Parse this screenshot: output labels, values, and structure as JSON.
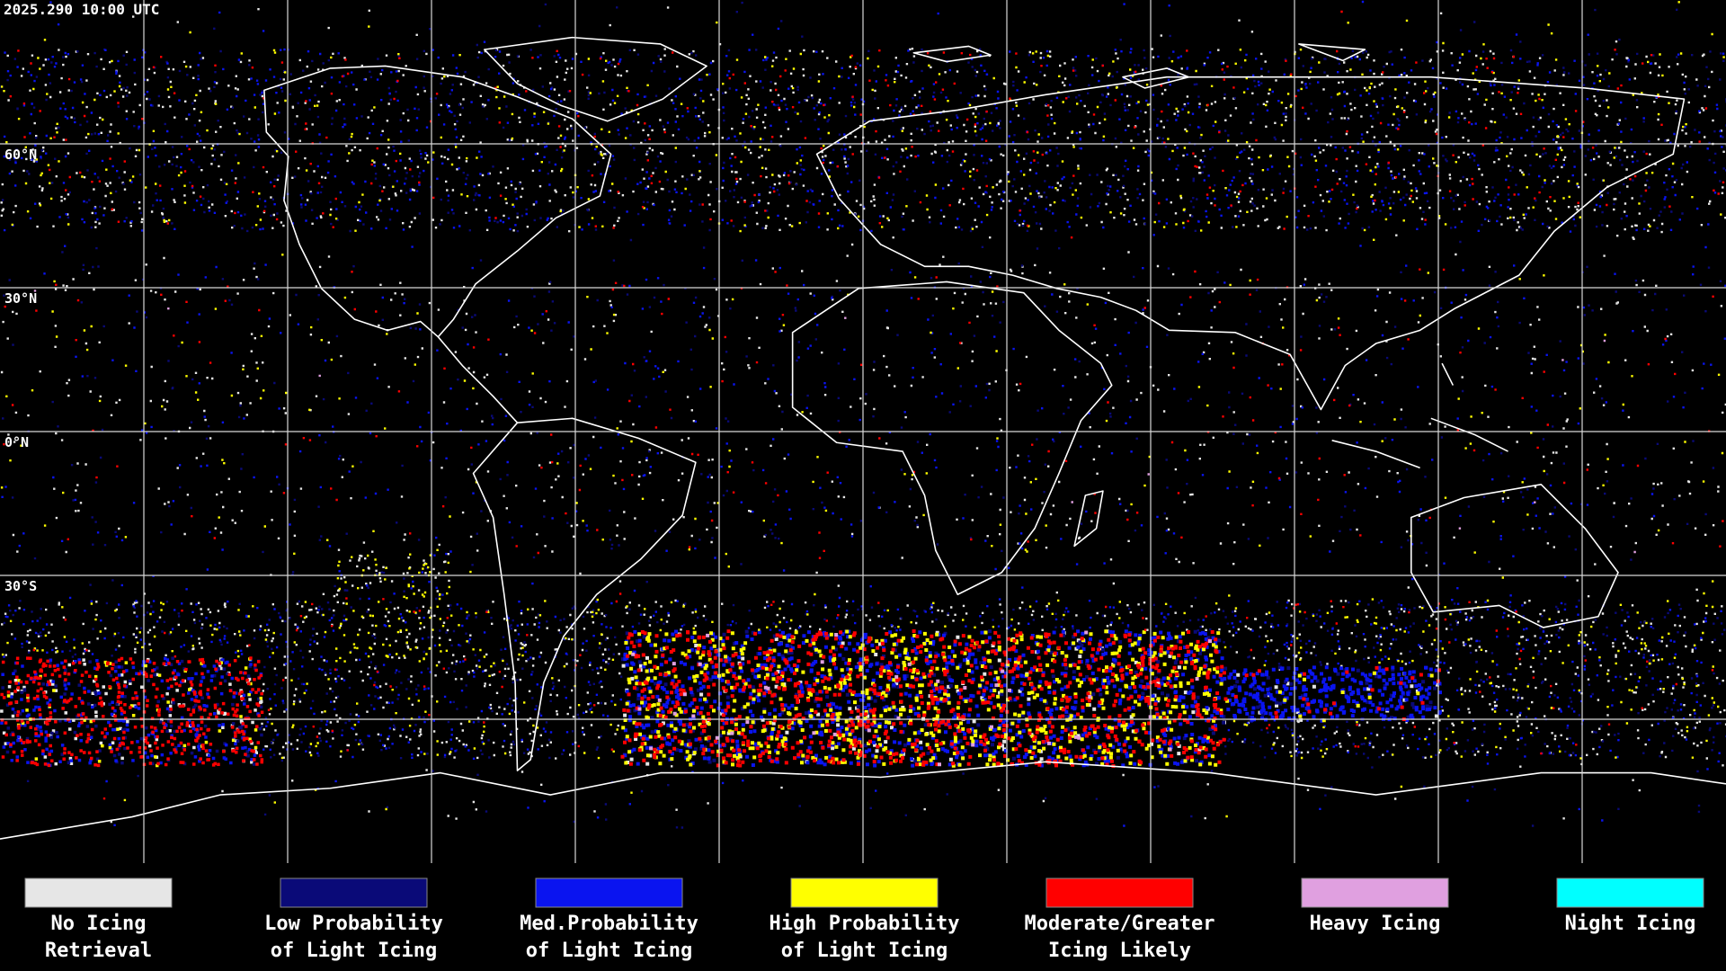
{
  "header": {
    "timestamp": "2025.290 10:00 UTC"
  },
  "map": {
    "latitude_labels": [
      "60°N",
      "30°N",
      "0°N",
      "30°S"
    ]
  },
  "legend": {
    "items": [
      {
        "color": "#e6e6e6",
        "label_lines": [
          "No Icing",
          "Retrieval"
        ]
      },
      {
        "color": "#0a0a78",
        "label_lines": [
          "Low Probability",
          "of Light Icing"
        ]
      },
      {
        "color": "#0a14f0",
        "label_lines": [
          "Med.Probability",
          "of Light Icing"
        ]
      },
      {
        "color": "#ffff00",
        "label_lines": [
          "High Probability",
          "of Light Icing"
        ]
      },
      {
        "color": "#ff0000",
        "label_lines": [
          "Moderate/Greater",
          "Icing Likely"
        ]
      },
      {
        "color": "#e0a0e0",
        "label_lines": [
          "Heavy Icing"
        ]
      },
      {
        "color": "#00ffff",
        "label_lines": [
          "Night Icing"
        ]
      }
    ]
  }
}
